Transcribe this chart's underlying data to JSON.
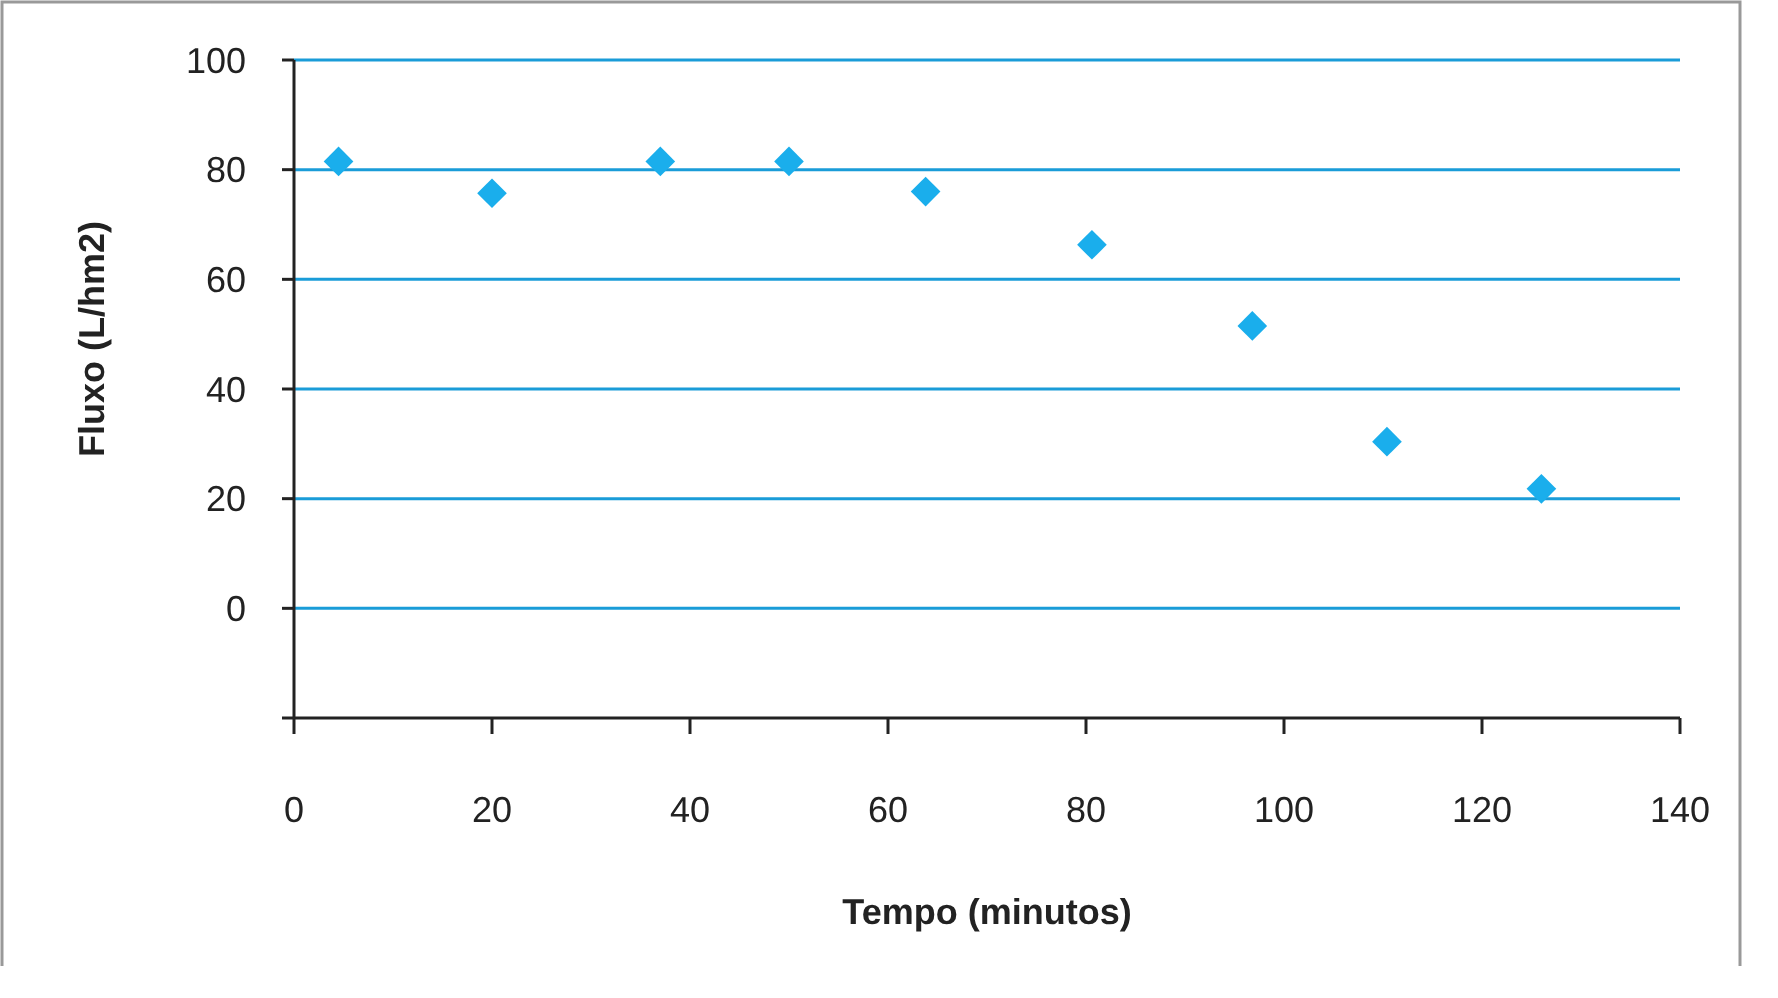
{
  "chart_data": {
    "type": "scatter",
    "xlabel": "Tempo (minutos)",
    "ylabel": "Fluxo (L/hm2)",
    "x": [
      4.5,
      20,
      37,
      50,
      63.8,
      80.6,
      96.8,
      110.4,
      126
    ],
    "values": [
      81.5,
      75.7,
      81.5,
      81.5,
      76,
      66.3,
      51.5,
      30.4,
      21.8
    ],
    "color": "#1aaeec",
    "marker": "diamond",
    "xlim": [
      0,
      140
    ],
    "xticks": [
      0,
      20,
      40,
      60,
      80,
      100,
      120,
      140
    ],
    "ylim": [
      -20,
      100
    ],
    "yticks": [
      {
        "value": -20,
        "label": null
      },
      0,
      20,
      40,
      60,
      80,
      100
    ],
    "grid": "y"
  }
}
